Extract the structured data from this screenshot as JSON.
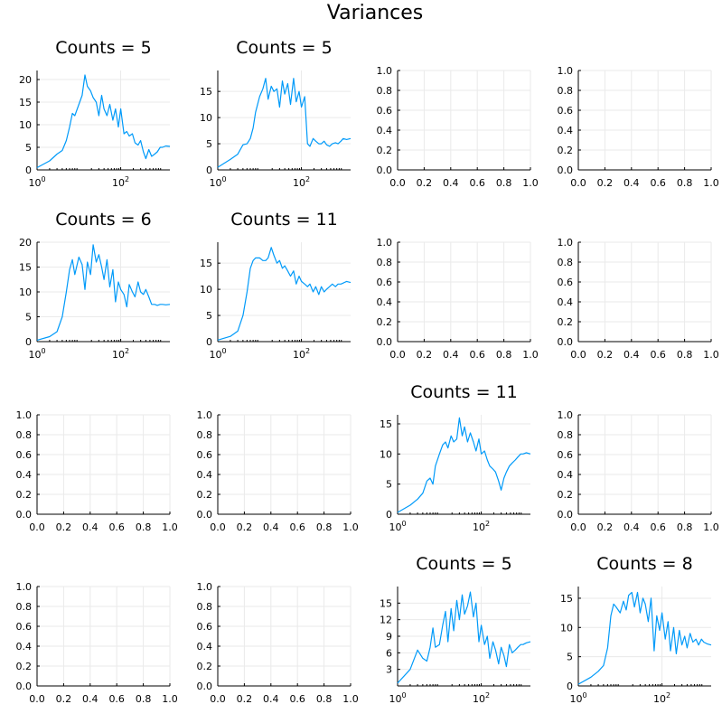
{
  "figure": {
    "title": "Variances"
  },
  "colors": {
    "line": "#009AF9",
    "grid": "#EAEAEA",
    "axis": "#000000",
    "background": "#FFFFFF"
  },
  "chart_data": [
    {
      "type": "line",
      "row": 1,
      "col": 1,
      "title": "Counts = 5",
      "xscale": "log",
      "xlim": [
        1,
        1500
      ],
      "ylim": [
        0,
        22
      ],
      "xticks": [
        "10^0",
        "10^2"
      ],
      "yticks": [
        0,
        5,
        10,
        15,
        20
      ],
      "grid": true,
      "legend": "none",
      "series": [
        {
          "x": [
            1,
            2,
            3,
            4,
            5,
            6,
            7,
            8,
            10,
            12,
            14,
            16,
            19,
            22,
            26,
            30,
            35,
            40,
            47,
            55,
            65,
            75,
            88,
            100,
            120,
            140,
            160,
            190,
            220,
            260,
            300,
            350,
            400,
            470,
            550,
            650,
            750,
            880,
            1000,
            1200,
            1500
          ],
          "y": [
            0.5,
            2.0,
            3.5,
            4.3,
            6.5,
            9.5,
            12.5,
            12.0,
            14.5,
            16.5,
            21.0,
            18.5,
            17.5,
            16.0,
            15.0,
            12.0,
            16.5,
            13.5,
            12.0,
            14.5,
            11.0,
            13.5,
            9.5,
            13.5,
            8.0,
            8.5,
            7.5,
            8.0,
            6.0,
            5.5,
            6.5,
            4.0,
            2.5,
            4.5,
            3.0,
            3.5,
            4.0,
            5.0,
            5.0,
            5.3,
            5.2
          ]
        }
      ]
    },
    {
      "type": "line",
      "row": 1,
      "col": 2,
      "title": "Counts = 5",
      "xscale": "log",
      "xlim": [
        1,
        1500
      ],
      "ylim": [
        0,
        19
      ],
      "xticks": [
        "10^0",
        "10^2"
      ],
      "yticks": [
        0,
        5,
        10,
        15
      ],
      "grid": true,
      "legend": "none",
      "series": [
        {
          "x": [
            1,
            2,
            3,
            4,
            5,
            6,
            7,
            8,
            10,
            12,
            14,
            16,
            19,
            22,
            26,
            30,
            35,
            40,
            47,
            55,
            65,
            75,
            88,
            100,
            120,
            140,
            160,
            190,
            220,
            260,
            300,
            350,
            400,
            470,
            550,
            650,
            750,
            880,
            1000,
            1200,
            1500
          ],
          "y": [
            0.5,
            2.0,
            3.0,
            4.8,
            5.0,
            6.0,
            8.0,
            11.0,
            14.0,
            15.5,
            17.5,
            13.5,
            16.0,
            15.0,
            15.5,
            12.0,
            17.0,
            14.5,
            16.5,
            12.5,
            17.5,
            13.0,
            15.0,
            12.0,
            14.0,
            5.0,
            4.5,
            6.0,
            5.5,
            5.0,
            5.0,
            5.5,
            4.8,
            4.5,
            5.0,
            5.2,
            5.0,
            5.5,
            6.0,
            5.8,
            6.0
          ]
        }
      ]
    },
    {
      "type": "empty",
      "row": 1,
      "col": 3,
      "xlim": [
        0,
        1
      ],
      "ylim": [
        0,
        1
      ],
      "xticks": [
        "0.0",
        "0.2",
        "0.4",
        "0.6",
        "0.8",
        "1.0"
      ],
      "yticks": [
        "0.0",
        "0.2",
        "0.4",
        "0.6",
        "0.8",
        "1.0"
      ],
      "grid": true
    },
    {
      "type": "empty",
      "row": 1,
      "col": 4,
      "xlim": [
        0,
        1
      ],
      "ylim": [
        0,
        1
      ],
      "xticks": [
        "0.0",
        "0.2",
        "0.4",
        "0.6",
        "0.8",
        "1.0"
      ],
      "yticks": [
        "0.0",
        "0.2",
        "0.4",
        "0.6",
        "0.8",
        "1.0"
      ],
      "grid": true
    },
    {
      "type": "line",
      "row": 2,
      "col": 1,
      "title": "Counts = 6",
      "xscale": "log",
      "xlim": [
        1,
        1500
      ],
      "ylim": [
        0,
        20
      ],
      "xticks": [
        "10^0",
        "10^2"
      ],
      "yticks": [
        0,
        5,
        10,
        15,
        20
      ],
      "grid": true,
      "legend": "none",
      "series": [
        {
          "x": [
            1,
            2,
            3,
            4,
            5,
            6,
            7,
            8,
            10,
            12,
            14,
            16,
            19,
            22,
            26,
            30,
            35,
            40,
            47,
            55,
            65,
            75,
            88,
            100,
            120,
            140,
            160,
            190,
            220,
            260,
            300,
            350,
            400,
            470,
            550,
            650,
            750,
            880,
            1000,
            1200,
            1500
          ],
          "y": [
            0.3,
            1.0,
            2.0,
            5.0,
            10.0,
            14.5,
            16.5,
            13.5,
            17.0,
            15.5,
            10.5,
            16.0,
            13.5,
            19.5,
            16.0,
            17.5,
            15.0,
            12.5,
            16.5,
            11.0,
            14.5,
            8.0,
            12.0,
            10.5,
            9.5,
            7.0,
            11.5,
            10.0,
            9.0,
            12.0,
            10.0,
            9.5,
            10.5,
            9.0,
            7.5,
            7.5,
            7.3,
            7.5,
            7.5,
            7.4,
            7.5
          ]
        }
      ]
    },
    {
      "type": "line",
      "row": 2,
      "col": 2,
      "title": "Counts = 11",
      "xscale": "log",
      "xlim": [
        1,
        1500
      ],
      "ylim": [
        0,
        19
      ],
      "xticks": [
        "10^0",
        "10^2"
      ],
      "yticks": [
        0,
        5,
        10,
        15
      ],
      "grid": true,
      "legend": "none",
      "series": [
        {
          "x": [
            1,
            2,
            3,
            4,
            5,
            6,
            7,
            8,
            10,
            12,
            14,
            16,
            19,
            22,
            26,
            30,
            35,
            40,
            47,
            55,
            65,
            75,
            88,
            100,
            120,
            140,
            160,
            190,
            220,
            260,
            300,
            350,
            400,
            470,
            550,
            650,
            750,
            880,
            1000,
            1200,
            1500
          ],
          "y": [
            0.3,
            1.0,
            2.0,
            5.0,
            9.5,
            14.0,
            15.5,
            16.0,
            16.0,
            15.5,
            15.5,
            16.0,
            18.0,
            16.5,
            15.0,
            15.5,
            14.0,
            14.5,
            13.5,
            12.5,
            13.5,
            11.0,
            12.5,
            11.5,
            11.0,
            10.5,
            11.0,
            9.5,
            10.5,
            9.0,
            10.5,
            9.5,
            10.0,
            10.5,
            11.0,
            10.5,
            11.0,
            11.0,
            11.2,
            11.5,
            11.3
          ]
        }
      ]
    },
    {
      "type": "empty",
      "row": 2,
      "col": 3,
      "xlim": [
        0,
        1
      ],
      "ylim": [
        0,
        1
      ],
      "xticks": [
        "0.0",
        "0.2",
        "0.4",
        "0.6",
        "0.8",
        "1.0"
      ],
      "yticks": [
        "0.0",
        "0.2",
        "0.4",
        "0.6",
        "0.8",
        "1.0"
      ],
      "grid": true
    },
    {
      "type": "empty",
      "row": 2,
      "col": 4,
      "xlim": [
        0,
        1
      ],
      "ylim": [
        0,
        1
      ],
      "xticks": [
        "0.0",
        "0.2",
        "0.4",
        "0.6",
        "0.8",
        "1.0"
      ],
      "yticks": [
        "0.0",
        "0.2",
        "0.4",
        "0.6",
        "0.8",
        "1.0"
      ],
      "grid": true
    },
    {
      "type": "empty",
      "row": 3,
      "col": 1,
      "xlim": [
        0,
        1
      ],
      "ylim": [
        0,
        1
      ],
      "xticks": [
        "0.0",
        "0.2",
        "0.4",
        "0.6",
        "0.8",
        "1.0"
      ],
      "yticks": [
        "0.0",
        "0.2",
        "0.4",
        "0.6",
        "0.8",
        "1.0"
      ],
      "grid": true
    },
    {
      "type": "empty",
      "row": 3,
      "col": 2,
      "xlim": [
        0,
        1
      ],
      "ylim": [
        0,
        1
      ],
      "xticks": [
        "0.0",
        "0.2",
        "0.4",
        "0.6",
        "0.8",
        "1.0"
      ],
      "yticks": [
        "0.0",
        "0.2",
        "0.4",
        "0.6",
        "0.8",
        "1.0"
      ],
      "grid": true
    },
    {
      "type": "line",
      "row": 3,
      "col": 3,
      "title": "Counts = 11",
      "xscale": "log",
      "xlim": [
        1,
        1500
      ],
      "ylim": [
        0,
        16.5
      ],
      "xticks": [
        "10^0",
        "10^2"
      ],
      "yticks": [
        0,
        5,
        10,
        15
      ],
      "grid": true,
      "legend": "none",
      "series": [
        {
          "x": [
            1,
            2,
            3,
            4,
            5,
            6,
            7,
            8,
            10,
            12,
            14,
            16,
            19,
            22,
            26,
            30,
            35,
            40,
            47,
            55,
            65,
            75,
            88,
            100,
            120,
            140,
            160,
            190,
            220,
            260,
            300,
            350,
            400,
            470,
            550,
            650,
            750,
            880,
            1000,
            1200,
            1500
          ],
          "y": [
            0.3,
            1.5,
            2.5,
            3.5,
            5.5,
            6.0,
            5.0,
            8.0,
            10.0,
            11.5,
            12.0,
            11.0,
            13.0,
            12.0,
            12.5,
            16.0,
            13.0,
            14.5,
            12.0,
            13.5,
            12.0,
            10.5,
            12.5,
            10.0,
            10.5,
            9.0,
            8.0,
            7.5,
            7.0,
            5.5,
            4.0,
            6.0,
            7.0,
            8.0,
            8.5,
            9.0,
            9.5,
            10.0,
            10.0,
            10.2,
            10.0
          ]
        }
      ]
    },
    {
      "type": "empty",
      "row": 3,
      "col": 4,
      "xlim": [
        0,
        1
      ],
      "ylim": [
        0,
        1
      ],
      "xticks": [
        "0.0",
        "0.2",
        "0.4",
        "0.6",
        "0.8",
        "1.0"
      ],
      "yticks": [
        "0.0",
        "0.2",
        "0.4",
        "0.6",
        "0.8",
        "1.0"
      ],
      "grid": true
    },
    {
      "type": "empty",
      "row": 4,
      "col": 1,
      "xlim": [
        0,
        1
      ],
      "ylim": [
        0,
        1
      ],
      "xticks": [
        "0.0",
        "0.2",
        "0.4",
        "0.6",
        "0.8",
        "1.0"
      ],
      "yticks": [
        "0.0",
        "0.2",
        "0.4",
        "0.6",
        "0.8",
        "1.0"
      ],
      "grid": true
    },
    {
      "type": "empty",
      "row": 4,
      "col": 2,
      "xlim": [
        0,
        1
      ],
      "ylim": [
        0,
        1
      ],
      "xticks": [
        "0.0",
        "0.2",
        "0.4",
        "0.6",
        "0.8",
        "1.0"
      ],
      "yticks": [
        "0.0",
        "0.2",
        "0.4",
        "0.6",
        "0.8",
        "1.0"
      ],
      "grid": true
    },
    {
      "type": "line",
      "row": 4,
      "col": 3,
      "title": "Counts = 5",
      "xscale": "log",
      "xlim": [
        1,
        1500
      ],
      "ylim": [
        0,
        18
      ],
      "xticks": [
        "10^0",
        "10^2"
      ],
      "yticks": [
        3,
        6,
        9,
        12,
        15
      ],
      "grid": true,
      "legend": "none",
      "series": [
        {
          "x": [
            1,
            2,
            3,
            4,
            5,
            6,
            7,
            8,
            10,
            12,
            14,
            16,
            19,
            22,
            26,
            30,
            35,
            40,
            47,
            55,
            65,
            75,
            88,
            100,
            120,
            140,
            160,
            190,
            220,
            260,
            300,
            350,
            400,
            470,
            550,
            650,
            750,
            880,
            1000,
            1200,
            1500
          ],
          "y": [
            0.5,
            3.0,
            6.5,
            5.0,
            4.5,
            7.0,
            10.5,
            7.0,
            7.5,
            11.0,
            13.5,
            8.0,
            14.0,
            10.0,
            15.5,
            12.0,
            16.5,
            13.0,
            14.5,
            17.0,
            12.5,
            15.0,
            8.0,
            11.0,
            7.5,
            9.0,
            5.0,
            8.0,
            6.5,
            4.0,
            7.0,
            5.5,
            3.5,
            7.5,
            6.0,
            6.5,
            7.0,
            7.5,
            7.5,
            7.8,
            8.0
          ]
        }
      ]
    },
    {
      "type": "line",
      "row": 4,
      "col": 4,
      "title": "Counts = 8",
      "xscale": "log",
      "xlim": [
        1,
        1500
      ],
      "ylim": [
        0,
        17
      ],
      "xticks": [
        "10^0",
        "10^2"
      ],
      "yticks": [
        0,
        5,
        10,
        15
      ],
      "grid": true,
      "legend": "none",
      "series": [
        {
          "x": [
            1,
            2,
            3,
            4,
            5,
            6,
            7,
            8,
            10,
            12,
            14,
            16,
            19,
            22,
            26,
            30,
            35,
            40,
            47,
            55,
            65,
            75,
            88,
            100,
            120,
            140,
            160,
            190,
            220,
            260,
            300,
            350,
            400,
            470,
            550,
            650,
            750,
            880,
            1000,
            1200,
            1500
          ],
          "y": [
            0.3,
            1.5,
            2.5,
            3.5,
            6.5,
            12.0,
            14.0,
            13.5,
            12.5,
            14.5,
            13.0,
            15.5,
            16.0,
            13.5,
            16.0,
            12.5,
            15.0,
            14.0,
            11.0,
            15.0,
            6.0,
            12.0,
            9.5,
            12.5,
            8.0,
            11.0,
            6.0,
            10.0,
            5.5,
            9.5,
            7.0,
            8.5,
            6.5,
            9.0,
            7.5,
            8.0,
            7.0,
            8.0,
            7.5,
            7.2,
            7.0
          ]
        }
      ]
    }
  ]
}
